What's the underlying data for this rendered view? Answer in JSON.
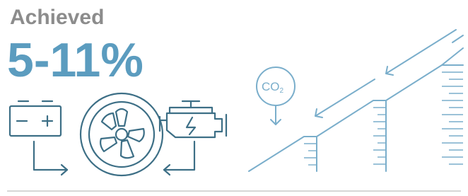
{
  "header": {
    "label": "Achieved",
    "value": "5-11%"
  },
  "co2": {
    "text": "CO",
    "subscript": "2"
  }
}
